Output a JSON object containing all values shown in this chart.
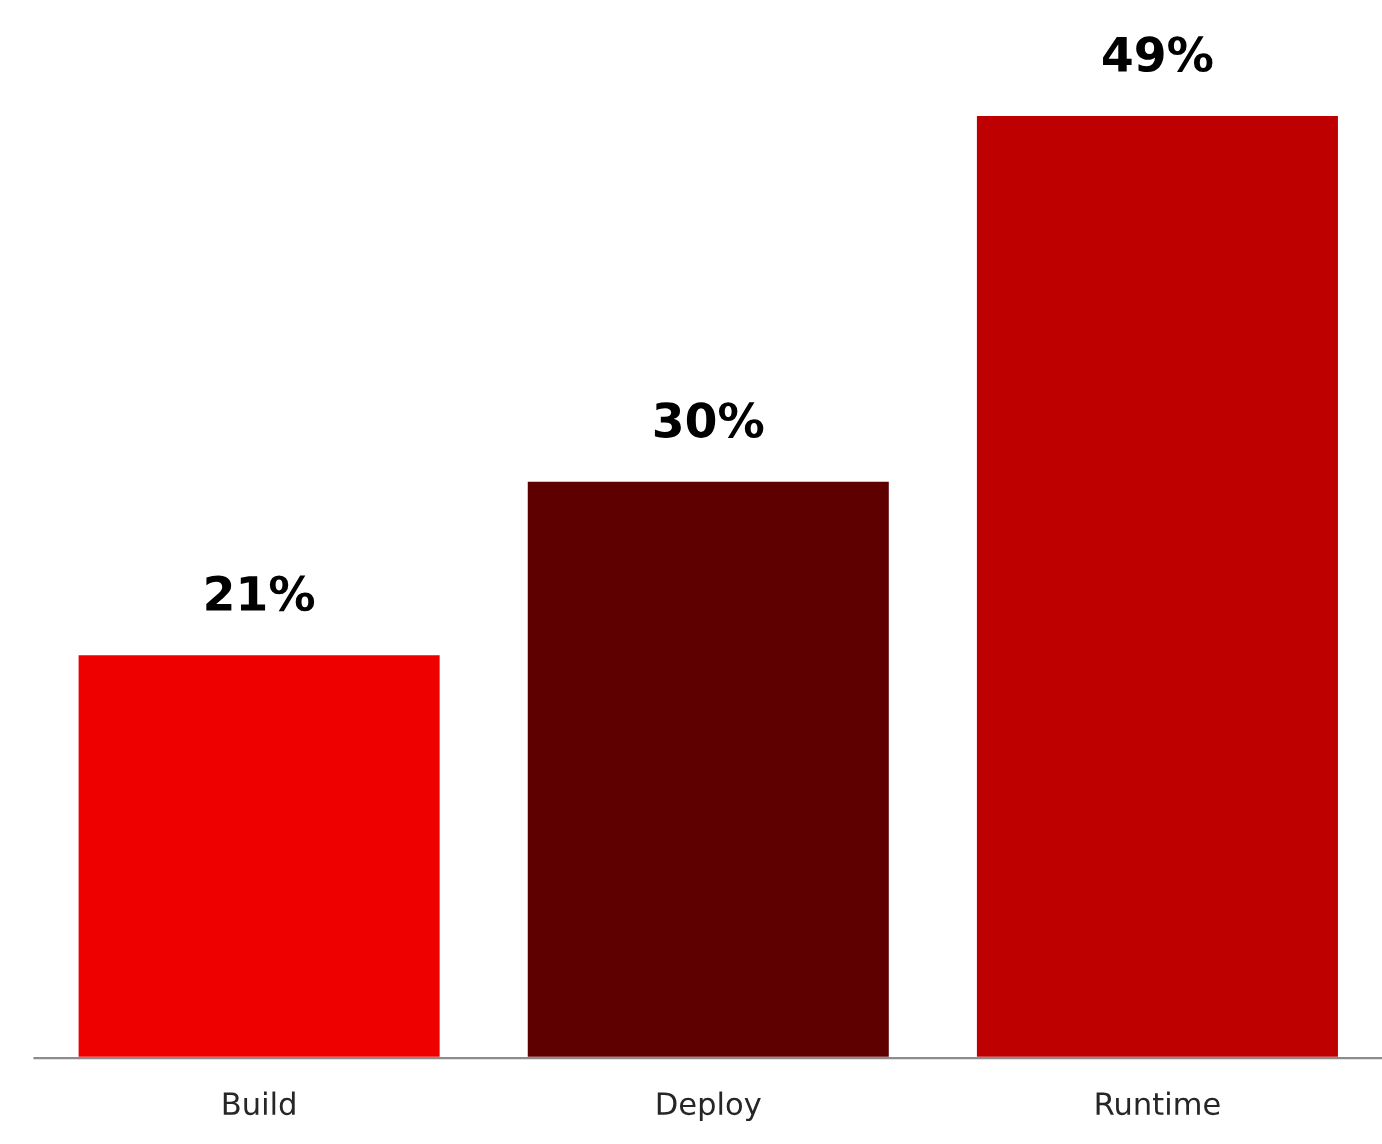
{
  "chart_data": {
    "type": "bar",
    "categories": [
      "Build",
      "Deploy",
      "Runtime"
    ],
    "values": [
      21,
      30,
      49
    ],
    "colors": [
      "#ee0000",
      "#5f0000",
      "#be0000"
    ],
    "value_labels": [
      "21%",
      "30%",
      "49%"
    ],
    "grid": false,
    "legend": false
  }
}
